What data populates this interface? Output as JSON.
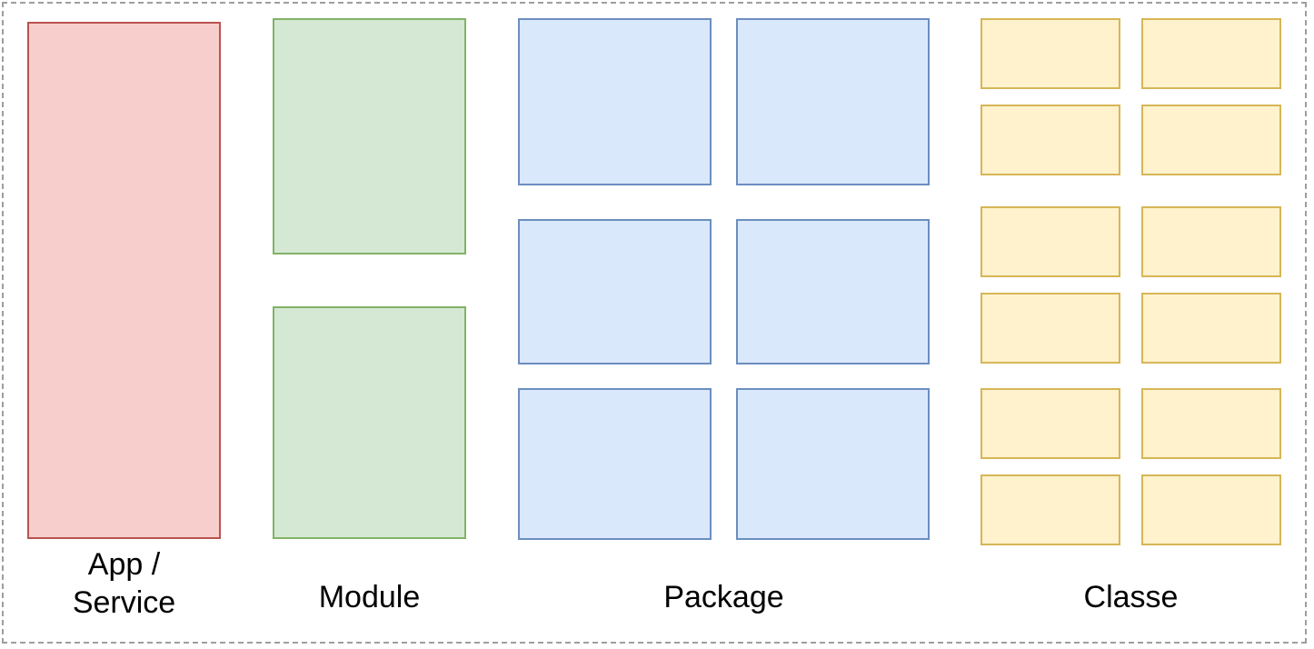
{
  "colors": {
    "frame_border": "#9e9e9e",
    "app": {
      "fill": "#f8cecc",
      "stroke": "#b85450"
    },
    "module": {
      "fill": "#d5e8d4",
      "stroke": "#82b366"
    },
    "package": {
      "fill": "#dae8fc",
      "stroke": "#6c8ebf"
    },
    "classe": {
      "fill": "#fff2cc",
      "stroke": "#d6b656"
    }
  },
  "labels": {
    "app": "App /\nService",
    "module": "Module",
    "package": "Package",
    "classe": "Classe"
  }
}
